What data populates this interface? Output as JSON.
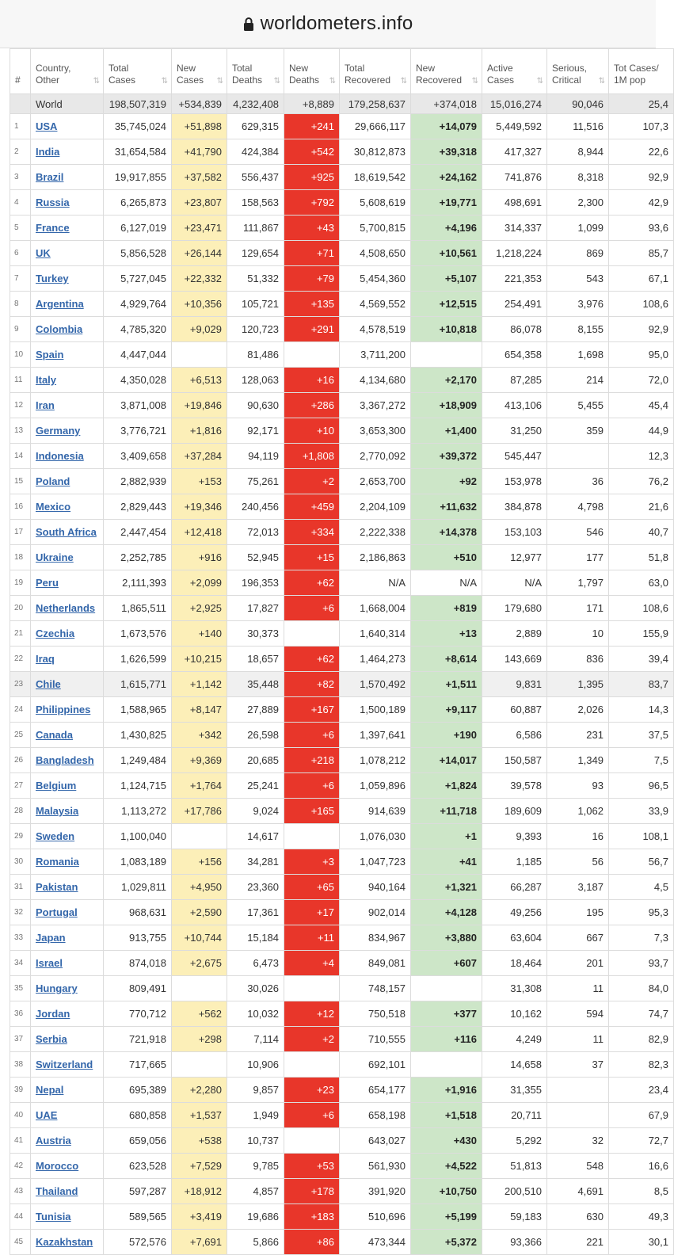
{
  "browser": {
    "url": "worldometers.info",
    "lock_icon": "lock-icon"
  },
  "table": {
    "columns": [
      {
        "key": "rank",
        "label": "#"
      },
      {
        "key": "country",
        "label": "Country,\nOther"
      },
      {
        "key": "total_cases",
        "label": "Total\nCases"
      },
      {
        "key": "new_cases",
        "label": "New\nCases"
      },
      {
        "key": "total_deaths",
        "label": "Total\nDeaths"
      },
      {
        "key": "new_deaths",
        "label": "New\nDeaths"
      },
      {
        "key": "total_recovered",
        "label": "Total\nRecovered"
      },
      {
        "key": "new_recovered",
        "label": "New\nRecovered"
      },
      {
        "key": "active_cases",
        "label": "Active\nCases"
      },
      {
        "key": "serious",
        "label": "Serious,\nCritical"
      },
      {
        "key": "per_million",
        "label": "Tot Cases/\n1M pop"
      }
    ],
    "colors": {
      "new_cases": "#fcefb8",
      "new_deaths": "#e8362a",
      "new_recovered": "#cde6c8",
      "world_row": "#e8e8e8",
      "link": "#3366aa"
    },
    "world": [
      "",
      "World",
      "198,507,319",
      "+534,839",
      "4,232,408",
      "+8,889",
      "179,258,637",
      "+374,018",
      "15,016,274",
      "90,046",
      "25,4"
    ],
    "rows": [
      [
        "1",
        "USA",
        "35,745,024",
        "+51,898",
        "629,315",
        "+241",
        "29,666,117",
        "+14,079",
        "5,449,592",
        "11,516",
        "107,3"
      ],
      [
        "2",
        "India",
        "31,654,584",
        "+41,790",
        "424,384",
        "+542",
        "30,812,873",
        "+39,318",
        "417,327",
        "8,944",
        "22,6"
      ],
      [
        "3",
        "Brazil",
        "19,917,855",
        "+37,582",
        "556,437",
        "+925",
        "18,619,542",
        "+24,162",
        "741,876",
        "8,318",
        "92,9"
      ],
      [
        "4",
        "Russia",
        "6,265,873",
        "+23,807",
        "158,563",
        "+792",
        "5,608,619",
        "+19,771",
        "498,691",
        "2,300",
        "42,9"
      ],
      [
        "5",
        "France",
        "6,127,019",
        "+23,471",
        "111,867",
        "+43",
        "5,700,815",
        "+4,196",
        "314,337",
        "1,099",
        "93,6"
      ],
      [
        "6",
        "UK",
        "5,856,528",
        "+26,144",
        "129,654",
        "+71",
        "4,508,650",
        "+10,561",
        "1,218,224",
        "869",
        "85,7"
      ],
      [
        "7",
        "Turkey",
        "5,727,045",
        "+22,332",
        "51,332",
        "+79",
        "5,454,360",
        "+5,107",
        "221,353",
        "543",
        "67,1"
      ],
      [
        "8",
        "Argentina",
        "4,929,764",
        "+10,356",
        "105,721",
        "+135",
        "4,569,552",
        "+12,515",
        "254,491",
        "3,976",
        "108,6"
      ],
      [
        "9",
        "Colombia",
        "4,785,320",
        "+9,029",
        "120,723",
        "+291",
        "4,578,519",
        "+10,818",
        "86,078",
        "8,155",
        "92,9"
      ],
      [
        "10",
        "Spain",
        "4,447,044",
        "",
        "81,486",
        "",
        "3,711,200",
        "",
        "654,358",
        "1,698",
        "95,0"
      ],
      [
        "11",
        "Italy",
        "4,350,028",
        "+6,513",
        "128,063",
        "+16",
        "4,134,680",
        "+2,170",
        "87,285",
        "214",
        "72,0"
      ],
      [
        "12",
        "Iran",
        "3,871,008",
        "+19,846",
        "90,630",
        "+286",
        "3,367,272",
        "+18,909",
        "413,106",
        "5,455",
        "45,4"
      ],
      [
        "13",
        "Germany",
        "3,776,721",
        "+1,816",
        "92,171",
        "+10",
        "3,653,300",
        "+1,400",
        "31,250",
        "359",
        "44,9"
      ],
      [
        "14",
        "Indonesia",
        "3,409,658",
        "+37,284",
        "94,119",
        "+1,808",
        "2,770,092",
        "+39,372",
        "545,447",
        "",
        "12,3"
      ],
      [
        "15",
        "Poland",
        "2,882,939",
        "+153",
        "75,261",
        "+2",
        "2,653,700",
        "+92",
        "153,978",
        "36",
        "76,2"
      ],
      [
        "16",
        "Mexico",
        "2,829,443",
        "+19,346",
        "240,456",
        "+459",
        "2,204,109",
        "+11,632",
        "384,878",
        "4,798",
        "21,6"
      ],
      [
        "17",
        "South Africa",
        "2,447,454",
        "+12,418",
        "72,013",
        "+334",
        "2,222,338",
        "+14,378",
        "153,103",
        "546",
        "40,7"
      ],
      [
        "18",
        "Ukraine",
        "2,252,785",
        "+916",
        "52,945",
        "+15",
        "2,186,863",
        "+510",
        "12,977",
        "177",
        "51,8"
      ],
      [
        "19",
        "Peru",
        "2,111,393",
        "+2,099",
        "196,353",
        "+62",
        "N/A",
        "N/A",
        "N/A",
        "1,797",
        "63,0"
      ],
      [
        "20",
        "Netherlands",
        "1,865,511",
        "+2,925",
        "17,827",
        "+6",
        "1,668,004",
        "+819",
        "179,680",
        "171",
        "108,6"
      ],
      [
        "21",
        "Czechia",
        "1,673,576",
        "+140",
        "30,373",
        "",
        "1,640,314",
        "+13",
        "2,889",
        "10",
        "155,9"
      ],
      [
        "22",
        "Iraq",
        "1,626,599",
        "+10,215",
        "18,657",
        "+62",
        "1,464,273",
        "+8,614",
        "143,669",
        "836",
        "39,4"
      ],
      [
        "23",
        "Chile",
        "1,615,771",
        "+1,142",
        "35,448",
        "+82",
        "1,570,492",
        "+1,511",
        "9,831",
        "1,395",
        "83,7"
      ],
      [
        "24",
        "Philippines",
        "1,588,965",
        "+8,147",
        "27,889",
        "+167",
        "1,500,189",
        "+9,117",
        "60,887",
        "2,026",
        "14,3"
      ],
      [
        "25",
        "Canada",
        "1,430,825",
        "+342",
        "26,598",
        "+6",
        "1,397,641",
        "+190",
        "6,586",
        "231",
        "37,5"
      ],
      [
        "26",
        "Bangladesh",
        "1,249,484",
        "+9,369",
        "20,685",
        "+218",
        "1,078,212",
        "+14,017",
        "150,587",
        "1,349",
        "7,5"
      ],
      [
        "27",
        "Belgium",
        "1,124,715",
        "+1,764",
        "25,241",
        "+6",
        "1,059,896",
        "+1,824",
        "39,578",
        "93",
        "96,5"
      ],
      [
        "28",
        "Malaysia",
        "1,113,272",
        "+17,786",
        "9,024",
        "+165",
        "914,639",
        "+11,718",
        "189,609",
        "1,062",
        "33,9"
      ],
      [
        "29",
        "Sweden",
        "1,100,040",
        "",
        "14,617",
        "",
        "1,076,030",
        "+1",
        "9,393",
        "16",
        "108,1"
      ],
      [
        "30",
        "Romania",
        "1,083,189",
        "+156",
        "34,281",
        "+3",
        "1,047,723",
        "+41",
        "1,185",
        "56",
        "56,7"
      ],
      [
        "31",
        "Pakistan",
        "1,029,811",
        "+4,950",
        "23,360",
        "+65",
        "940,164",
        "+1,321",
        "66,287",
        "3,187",
        "4,5"
      ],
      [
        "32",
        "Portugal",
        "968,631",
        "+2,590",
        "17,361",
        "+17",
        "902,014",
        "+4,128",
        "49,256",
        "195",
        "95,3"
      ],
      [
        "33",
        "Japan",
        "913,755",
        "+10,744",
        "15,184",
        "+11",
        "834,967",
        "+3,880",
        "63,604",
        "667",
        "7,3"
      ],
      [
        "34",
        "Israel",
        "874,018",
        "+2,675",
        "6,473",
        "+4",
        "849,081",
        "+607",
        "18,464",
        "201",
        "93,7"
      ],
      [
        "35",
        "Hungary",
        "809,491",
        "",
        "30,026",
        "",
        "748,157",
        "",
        "31,308",
        "11",
        "84,0"
      ],
      [
        "36",
        "Jordan",
        "770,712",
        "+562",
        "10,032",
        "+12",
        "750,518",
        "+377",
        "10,162",
        "594",
        "74,7"
      ],
      [
        "37",
        "Serbia",
        "721,918",
        "+298",
        "7,114",
        "+2",
        "710,555",
        "+116",
        "4,249",
        "11",
        "82,9"
      ],
      [
        "38",
        "Switzerland",
        "717,665",
        "",
        "10,906",
        "",
        "692,101",
        "",
        "14,658",
        "37",
        "82,3"
      ],
      [
        "39",
        "Nepal",
        "695,389",
        "+2,280",
        "9,857",
        "+23",
        "654,177",
        "+1,916",
        "31,355",
        "",
        "23,4"
      ],
      [
        "40",
        "UAE",
        "680,858",
        "+1,537",
        "1,949",
        "+6",
        "658,198",
        "+1,518",
        "20,711",
        "",
        "67,9"
      ],
      [
        "41",
        "Austria",
        "659,056",
        "+538",
        "10,737",
        "",
        "643,027",
        "+430",
        "5,292",
        "32",
        "72,7"
      ],
      [
        "42",
        "Morocco",
        "623,528",
        "+7,529",
        "9,785",
        "+53",
        "561,930",
        "+4,522",
        "51,813",
        "548",
        "16,6"
      ],
      [
        "43",
        "Thailand",
        "597,287",
        "+18,912",
        "4,857",
        "+178",
        "391,920",
        "+10,750",
        "200,510",
        "4,691",
        "8,5"
      ],
      [
        "44",
        "Tunisia",
        "589,565",
        "+3,419",
        "19,686",
        "+183",
        "510,696",
        "+5,199",
        "59,183",
        "630",
        "49,3"
      ],
      [
        "45",
        "Kazakhstan",
        "572,576",
        "+7,691",
        "5,866",
        "+86",
        "473,344",
        "+5,372",
        "93,366",
        "221",
        "30,1"
      ]
    ],
    "highlighted_row": "23"
  }
}
